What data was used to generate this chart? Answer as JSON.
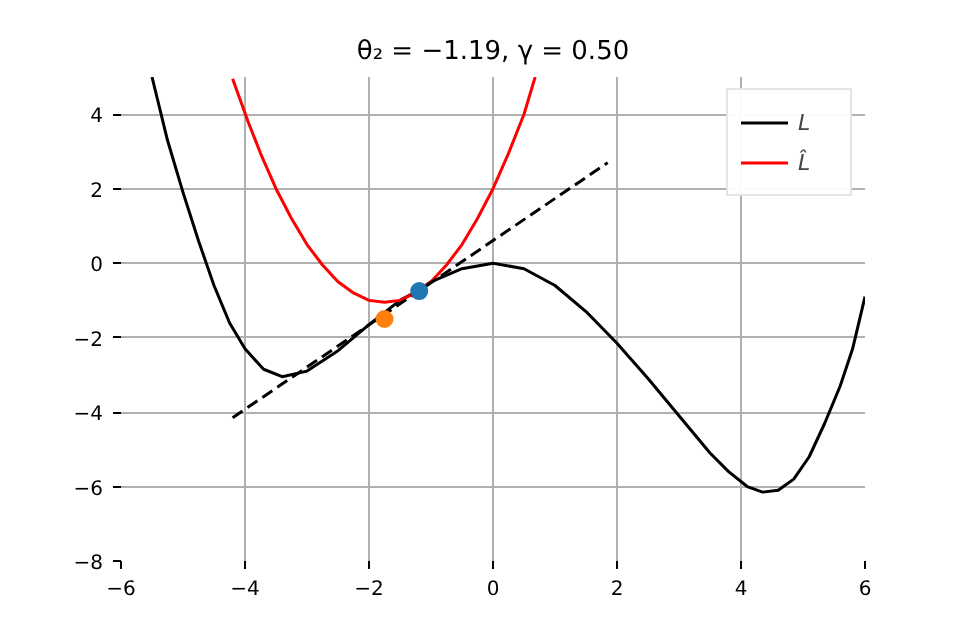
{
  "chart_data": {
    "type": "line",
    "title": "θ₂ = −1.19, γ = 0.50",
    "xlim": [
      -6,
      6
    ],
    "ylim": [
      -8,
      5
    ],
    "xticks": [
      -6,
      -4,
      -2,
      0,
      2,
      4,
      6
    ],
    "yticks": [
      -8,
      -6,
      -4,
      -2,
      0,
      2,
      4
    ],
    "grid": true,
    "legend": "top right",
    "series": [
      {
        "name": "L",
        "color": "#000000",
        "line_style": "solid",
        "x": [
          -5.5,
          -5.25,
          -5.0,
          -4.75,
          -4.5,
          -4.25,
          -4.0,
          -3.7,
          -3.4,
          -3.0,
          -2.5,
          -2.0,
          -1.5,
          -1.19,
          -1.0,
          -0.5,
          0,
          0.5,
          1.0,
          1.5,
          2.0,
          2.5,
          3.0,
          3.5,
          3.8,
          4.1,
          4.35,
          4.6,
          4.85,
          5.1,
          5.35,
          5.6,
          5.8,
          6.0
        ],
        "values": [
          5.0,
          3.3,
          1.9,
          0.6,
          -0.6,
          -1.6,
          -2.3,
          -2.85,
          -3.05,
          -2.9,
          -2.35,
          -1.65,
          -1.0,
          -0.72,
          -0.5,
          -0.15,
          0,
          -0.15,
          -0.6,
          -1.3,
          -2.15,
          -3.1,
          -4.1,
          -5.1,
          -5.6,
          -6.0,
          -6.15,
          -6.1,
          -5.8,
          -5.2,
          -4.3,
          -3.3,
          -2.3,
          -0.9
        ]
      },
      {
        "name": "L̂",
        "color": "#ff0000",
        "line_style": "solid",
        "x": [
          -4.2,
          -3.95,
          -3.75,
          -3.5,
          -3.25,
          -3.0,
          -2.75,
          -2.5,
          -2.25,
          -2.0,
          -1.75,
          -1.5,
          -1.25,
          -1.0,
          -0.75,
          -0.5,
          -0.25,
          0,
          0.25,
          0.5,
          0.68
        ],
        "values": [
          4.95,
          3.8,
          2.95,
          2.0,
          1.2,
          0.5,
          -0.05,
          -0.5,
          -0.8,
          -1.0,
          -1.05,
          -1.0,
          -0.8,
          -0.5,
          -0.05,
          0.5,
          1.2,
          2.0,
          2.95,
          4.0,
          5.0
        ]
      },
      {
        "color": "#000000",
        "type": "line",
        "line_style": "dashed",
        "x": [
          -4.2,
          1.85
        ],
        "values": [
          -4.15,
          2.7
        ]
      },
      {
        "color": "#ff7f0e",
        "type": "scatter",
        "marker": "circle",
        "x": [
          -1.75
        ],
        "values": [
          -1.5
        ]
      },
      {
        "color": "#1f77b4",
        "type": "scatter",
        "marker": "circle",
        "x": [
          -1.19
        ],
        "values": [
          -0.75
        ]
      }
    ]
  }
}
